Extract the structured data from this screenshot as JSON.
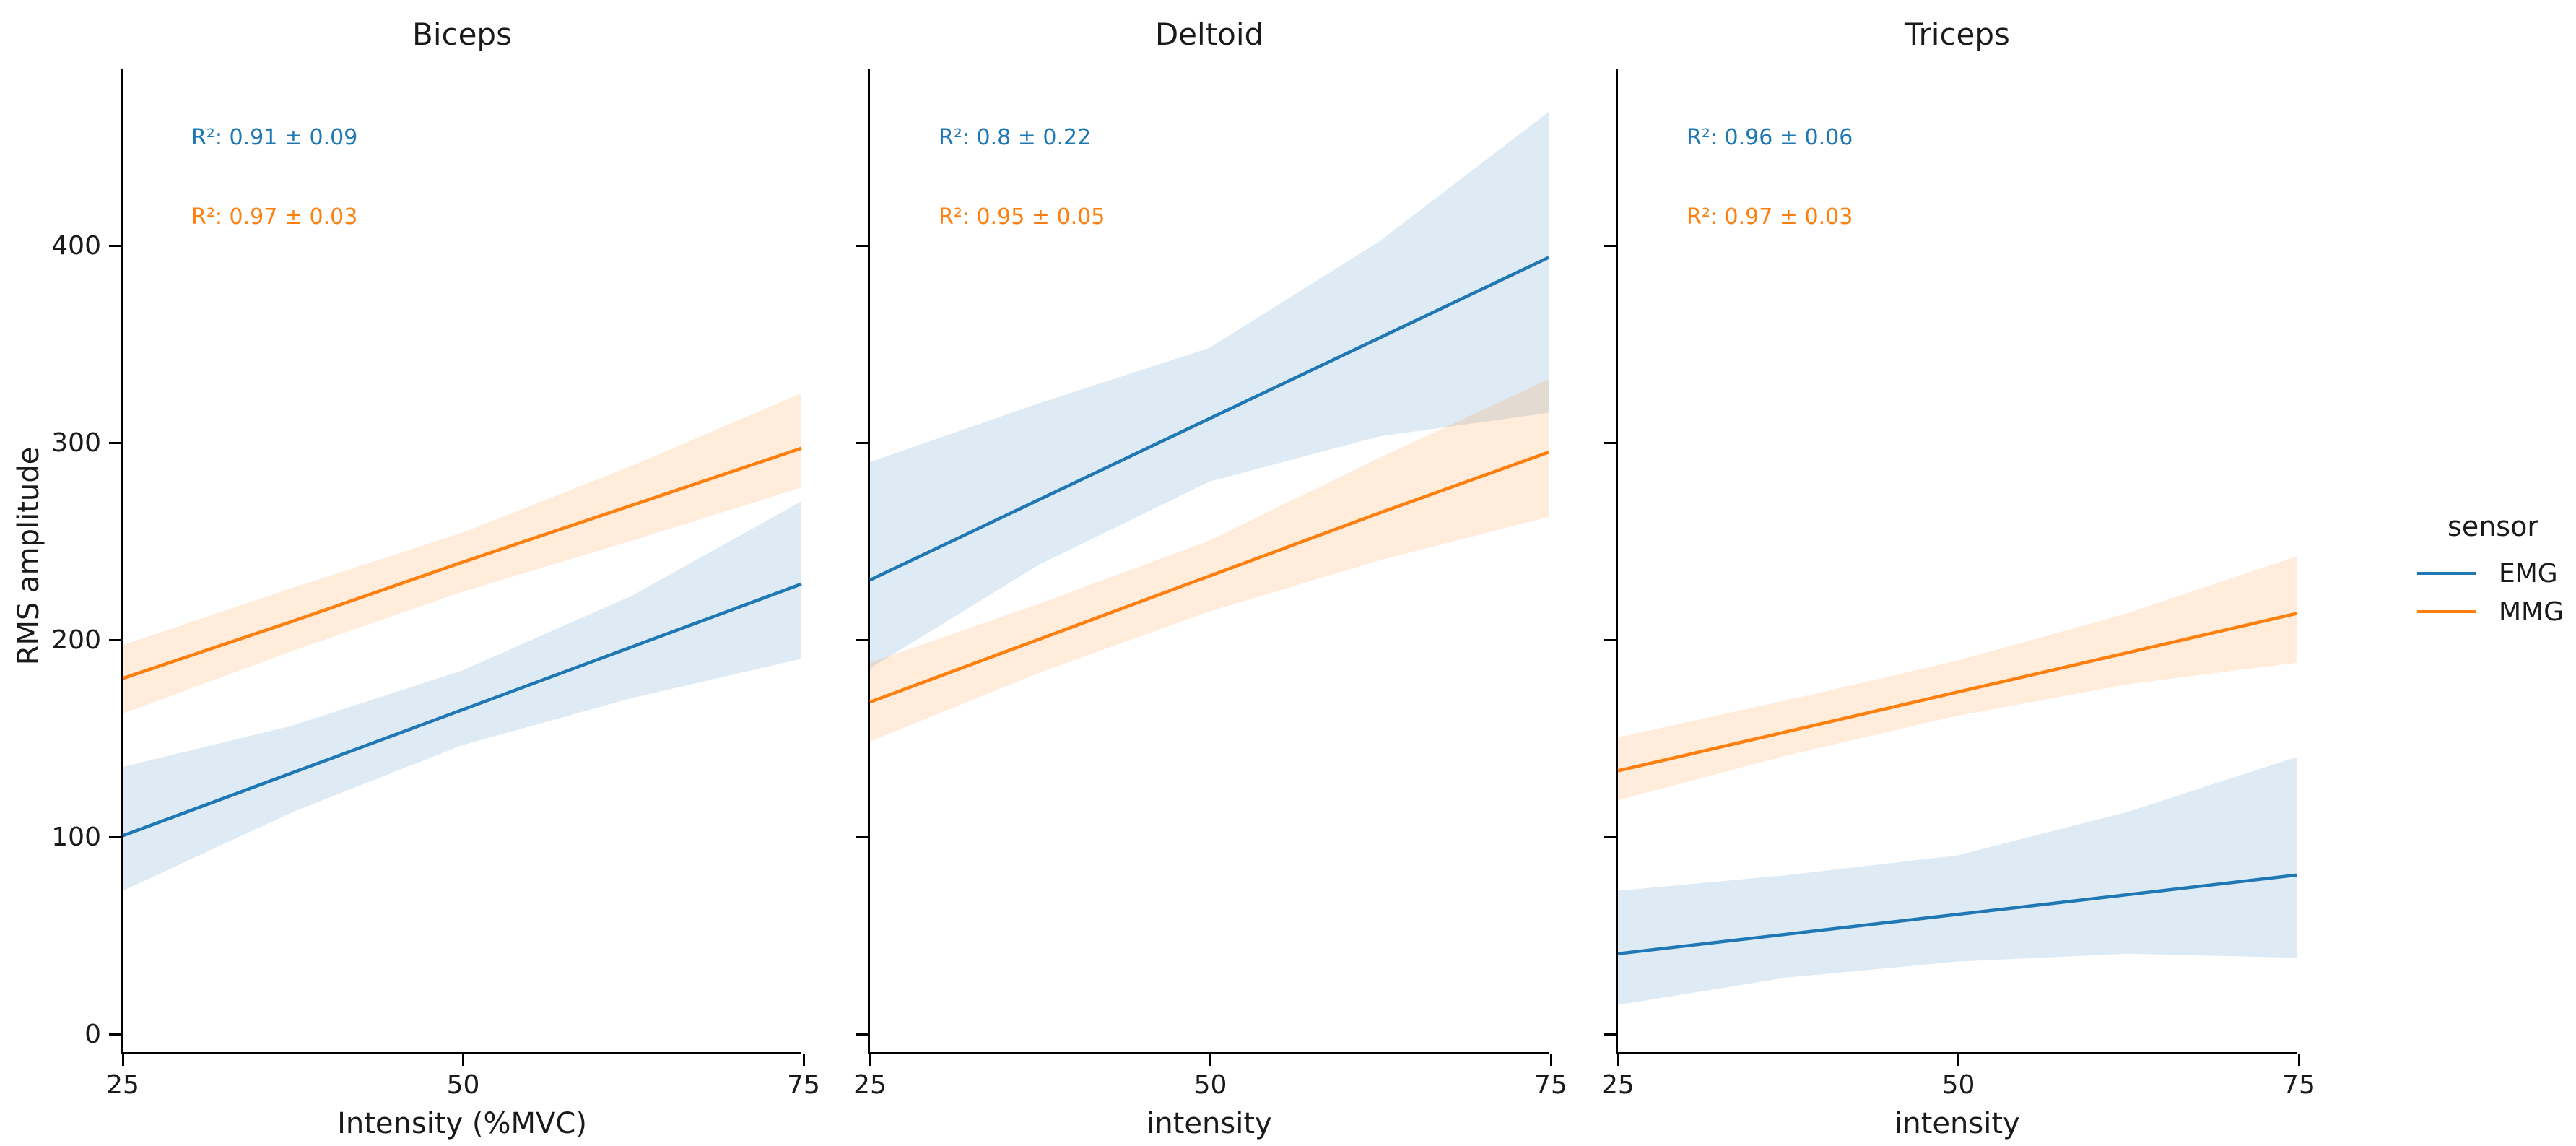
{
  "figure": {
    "ylabel": "RMS amplitude",
    "background": "#ffffff",
    "axis_color": "#000000",
    "text_color": "#1a1a1a"
  },
  "legend": {
    "title": "sensor",
    "position": "right",
    "entries": [
      {
        "label": "EMG",
        "color": "#1f77b4"
      },
      {
        "label": "MMG",
        "color": "#ff7f0e"
      }
    ]
  },
  "chart_data": [
    {
      "type": "line",
      "title": "Biceps",
      "xlabel": "Intensity (%MVC)",
      "ylabel": "RMS amplitude",
      "x": [
        25,
        37.5,
        50,
        62.5,
        75
      ],
      "xticks": [
        25,
        50,
        75
      ],
      "yticks": [
        0,
        100,
        200,
        300,
        400
      ],
      "xlim": [
        25,
        75
      ],
      "ylim": [
        -10,
        490
      ],
      "grid": false,
      "show_ytick_labels": true,
      "series": [
        {
          "name": "EMG",
          "color": "#1f77b4",
          "band_color": "rgba(31,119,180,0.15)",
          "values": [
            100,
            132,
            164,
            196,
            228
          ],
          "ci_lower": [
            72,
            112,
            146,
            170,
            190
          ],
          "ci_upper": [
            135,
            156,
            184,
            222,
            270
          ]
        },
        {
          "name": "MMG",
          "color": "#ff7f0e",
          "band_color": "rgba(255,127,14,0.15)",
          "values": [
            180,
            209,
            239,
            268,
            297
          ],
          "ci_lower": [
            162,
            194,
            224,
            250,
            277
          ],
          "ci_upper": [
            197,
            226,
            254,
            288,
            325
          ]
        }
      ],
      "annotations": [
        {
          "text": "R²: 0.91 ± 0.09",
          "color": "#1f77b4",
          "series": "EMG"
        },
        {
          "text": "R²: 0.97 ± 0.03",
          "color": "#ff7f0e",
          "series": "MMG"
        }
      ]
    },
    {
      "type": "line",
      "title": "Deltoid",
      "xlabel": "intensity",
      "ylabel": "",
      "x": [
        25,
        37.5,
        50,
        62.5,
        75
      ],
      "xticks": [
        25,
        50,
        75
      ],
      "yticks": [
        0,
        100,
        200,
        300,
        400
      ],
      "xlim": [
        25,
        75
      ],
      "ylim": [
        -10,
        490
      ],
      "grid": false,
      "show_ytick_labels": false,
      "series": [
        {
          "name": "EMG",
          "color": "#1f77b4",
          "band_color": "rgba(31,119,180,0.15)",
          "values": [
            230,
            271,
            312,
            353,
            394
          ],
          "ci_lower": [
            185,
            238,
            280,
            303,
            315
          ],
          "ci_upper": [
            290,
            320,
            348,
            402,
            468
          ]
        },
        {
          "name": "MMG",
          "color": "#ff7f0e",
          "band_color": "rgba(255,127,14,0.15)",
          "values": [
            168,
            200,
            232,
            264,
            295
          ],
          "ci_lower": [
            148,
            183,
            214,
            240,
            262
          ],
          "ci_upper": [
            188,
            218,
            250,
            292,
            332
          ]
        }
      ],
      "annotations": [
        {
          "text": "R²: 0.8 ± 0.22",
          "color": "#1f77b4",
          "series": "EMG"
        },
        {
          "text": "R²: 0.95 ± 0.05",
          "color": "#ff7f0e",
          "series": "MMG"
        }
      ]
    },
    {
      "type": "line",
      "title": "Triceps",
      "xlabel": "intensity",
      "ylabel": "",
      "x": [
        25,
        37.5,
        50,
        62.5,
        75
      ],
      "xticks": [
        25,
        50,
        75
      ],
      "yticks": [
        0,
        100,
        200,
        300,
        400
      ],
      "xlim": [
        25,
        75
      ],
      "ylim": [
        -10,
        490
      ],
      "grid": false,
      "show_ytick_labels": false,
      "series": [
        {
          "name": "EMG",
          "color": "#1f77b4",
          "band_color": "rgba(31,119,180,0.15)",
          "values": [
            40,
            50,
            60,
            70,
            80
          ],
          "ci_lower": [
            14,
            28,
            36,
            40,
            38
          ],
          "ci_upper": [
            72,
            80,
            90,
            112,
            140
          ]
        },
        {
          "name": "MMG",
          "color": "#ff7f0e",
          "band_color": "rgba(255,127,14,0.15)",
          "values": [
            133,
            153,
            173,
            193,
            213
          ],
          "ci_lower": [
            118,
            141,
            161,
            177,
            188
          ],
          "ci_upper": [
            150,
            169,
            189,
            213,
            242
          ]
        }
      ],
      "annotations": [
        {
          "text": "R²: 0.96 ± 0.06",
          "color": "#1f77b4",
          "series": "EMG"
        },
        {
          "text": "R²: 0.97 ± 0.03",
          "color": "#ff7f0e",
          "series": "MMG"
        }
      ]
    }
  ]
}
